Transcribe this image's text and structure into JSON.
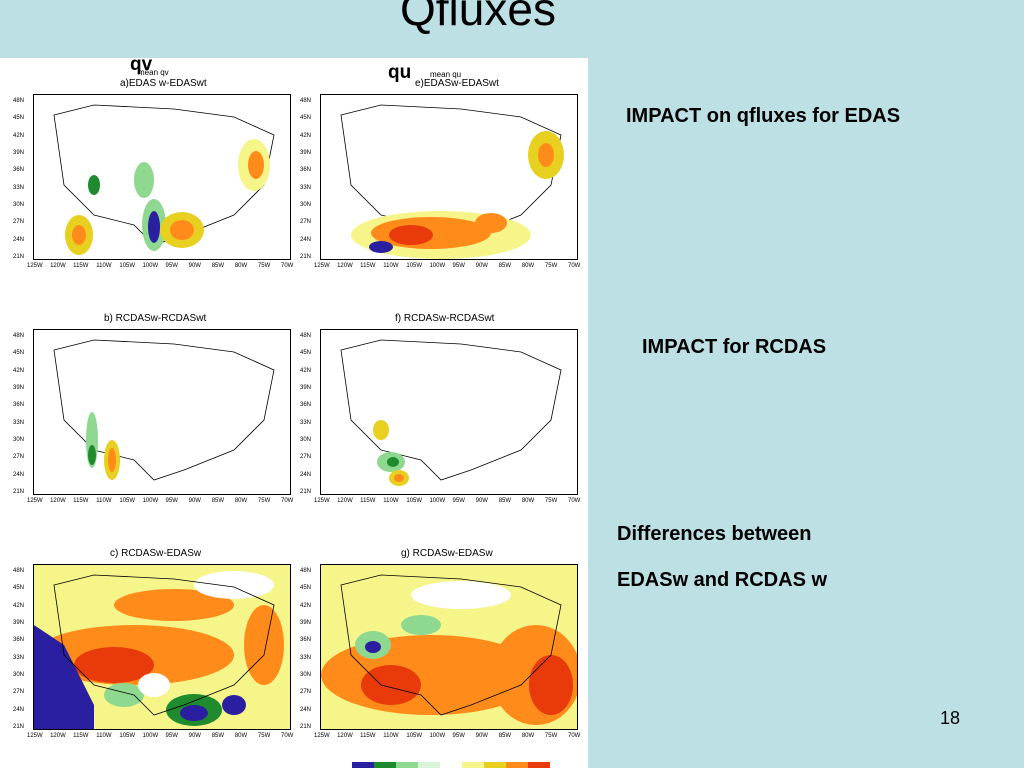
{
  "slide": {
    "title": "Qfluxes",
    "page_number": "18"
  },
  "labels": {
    "qv": "qv",
    "qu": "qu",
    "mean_qv": "mean qv",
    "mean_qu": "mean qu"
  },
  "panels": {
    "a": "a)EDAS w-EDASwt",
    "e": "e)EDASw-EDASwt",
    "b": "b) RCDASw-RCDASwt",
    "f": "f) RCDASw-RCDASwt",
    "c": "c) RCDASw-EDASw",
    "g": "g) RCDASw-EDASw"
  },
  "axes": {
    "lat": [
      "48N",
      "45N",
      "42N",
      "39N",
      "36N",
      "33N",
      "30N",
      "27N",
      "24N",
      "21N"
    ],
    "lon": [
      "125W",
      "120W",
      "115W",
      "110W",
      "105W",
      "100W",
      "95W",
      "90W",
      "85W",
      "80W",
      "75W",
      "70W"
    ]
  },
  "notes": {
    "edas": "IMPACT on qfluxes for EDAS",
    "rcdas": "IMPACT for RCDAS",
    "diff_line1": "Differences between",
    "diff_line2": "EDASw and RCDAS w"
  },
  "colors": {
    "background": "#bde0e5",
    "colorbar": [
      "#2a1fa0",
      "#1f8a2e",
      "#8fd88f",
      "#d9f5d9",
      "#ffffff",
      "#f5f58a",
      "#e8d020",
      "#ff8c1a",
      "#e83a0a"
    ]
  }
}
